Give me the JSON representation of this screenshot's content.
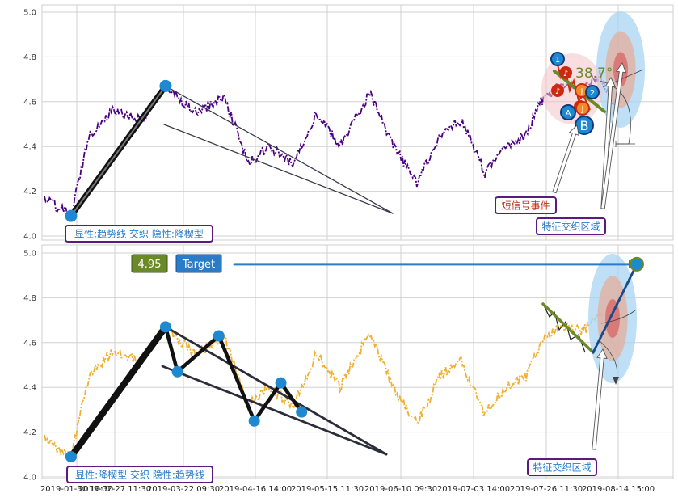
{
  "colors": {
    "top_series": "#4b0082",
    "bottom_series": "#f0b030",
    "trend_thick": "#111111",
    "trend_line": "#3a3a4a",
    "marker_blue": "#1e88d0",
    "marker_red": "#cc2a10",
    "marker_orange": "#f08a28",
    "angle_green": "#6a8a28",
    "target_blue": "#2a7bc8",
    "label_box_border": "#5a1a80",
    "label_text_blue": "#2a7bc8",
    "label_text_red": "#c03020",
    "badge_green": "#6a8a28",
    "badge_blue": "#2a7bc8",
    "halo_outer": "#a8d4f2",
    "halo_mid": "#e2b0a0",
    "halo_inner": "#d86a6a",
    "grid": "#d0d0d0",
    "frame": "#cfcfcf"
  },
  "chart_data": [
    {
      "type": "line",
      "panel": "top",
      "ylim": [
        4.0,
        5.0
      ],
      "y_ticks": [
        "4.0",
        "4.2",
        "4.4",
        "4.6",
        "4.8",
        "5.0"
      ],
      "key_points": [
        {
          "date": "2019-01-30",
          "value": 4.17
        },
        {
          "date": "2019-02-08",
          "value": 4.09
        },
        {
          "date": "2019-02-14",
          "value": 4.45
        },
        {
          "date": "2019-02-22",
          "value": 4.56
        },
        {
          "date": "2019-03-04",
          "value": 4.52
        },
        {
          "date": "2019-03-12",
          "value": 4.67
        },
        {
          "date": "2019-03-22",
          "value": 4.55
        },
        {
          "date": "2019-04-01",
          "value": 4.62
        },
        {
          "date": "2019-04-09",
          "value": 4.32
        },
        {
          "date": "2019-04-16",
          "value": 4.4
        },
        {
          "date": "2019-04-24",
          "value": 4.32
        },
        {
          "date": "2019-05-02",
          "value": 4.55
        },
        {
          "date": "2019-05-10",
          "value": 4.4
        },
        {
          "date": "2019-05-20",
          "value": 4.64
        },
        {
          "date": "2019-05-28",
          "value": 4.4
        },
        {
          "date": "2019-06-05",
          "value": 4.24
        },
        {
          "date": "2019-06-13",
          "value": 4.45
        },
        {
          "date": "2019-06-20",
          "value": 4.52
        },
        {
          "date": "2019-06-28",
          "value": 4.28
        },
        {
          "date": "2019-07-05",
          "value": 4.4
        },
        {
          "date": "2019-07-12",
          "value": 4.45
        },
        {
          "date": "2019-07-17",
          "value": 4.6
        },
        {
          "date": "2019-07-24",
          "value": 4.68
        },
        {
          "date": "2019-07-31",
          "value": 4.65
        },
        {
          "date": "2019-08-06",
          "value": 4.72
        },
        {
          "date": "2019-08-12",
          "value": 4.55
        }
      ],
      "annotations": {
        "angle_label": "38.7°",
        "event_markers": [
          "1",
          "2",
          "A",
          "B"
        ],
        "red_markers": [
          "♪",
          "♪",
          "♪"
        ],
        "orange_markers": [
          "J",
          "J"
        ],
        "label_bottom_left": "显性:趋势线 交织 隐性:降楔型",
        "label_short_signal": "短信号事件",
        "label_feature_zone": "特征交织区域"
      }
    },
    {
      "type": "line",
      "panel": "bottom",
      "ylim": [
        4.0,
        5.0
      ],
      "y_ticks": [
        "4.0",
        "4.2",
        "4.4",
        "4.6",
        "4.8",
        "5.0"
      ],
      "x_ticks": [
        "2019-01-30 10:30",
        "2019-02-27 11:30",
        "2019-03-22 09:30",
        "2019-04-16 14:00",
        "2019-05-15 11:30",
        "2019-06-10 09:30",
        "2019-07-03 14:00",
        "2019-07-26 11:30",
        "2019-08-14 15:00"
      ],
      "key_points": [
        {
          "date": "2019-01-30",
          "value": 4.17
        },
        {
          "date": "2019-02-08",
          "value": 4.09
        },
        {
          "date": "2019-02-14",
          "value": 4.45
        },
        {
          "date": "2019-02-22",
          "value": 4.56
        },
        {
          "date": "2019-03-04",
          "value": 4.52
        },
        {
          "date": "2019-03-12",
          "value": 4.67
        },
        {
          "date": "2019-03-22",
          "value": 4.55
        },
        {
          "date": "2019-04-01",
          "value": 4.62
        },
        {
          "date": "2019-04-09",
          "value": 4.32
        },
        {
          "date": "2019-04-16",
          "value": 4.4
        },
        {
          "date": "2019-04-24",
          "value": 4.32
        },
        {
          "date": "2019-05-02",
          "value": 4.55
        },
        {
          "date": "2019-05-10",
          "value": 4.4
        },
        {
          "date": "2019-05-20",
          "value": 4.64
        },
        {
          "date": "2019-05-28",
          "value": 4.4
        },
        {
          "date": "2019-06-05",
          "value": 4.24
        },
        {
          "date": "2019-06-13",
          "value": 4.45
        },
        {
          "date": "2019-06-20",
          "value": 4.52
        },
        {
          "date": "2019-06-28",
          "value": 4.28
        },
        {
          "date": "2019-07-05",
          "value": 4.4
        },
        {
          "date": "2019-07-12",
          "value": 4.45
        },
        {
          "date": "2019-07-17",
          "value": 4.6
        },
        {
          "date": "2019-07-24",
          "value": 4.68
        },
        {
          "date": "2019-07-31",
          "value": 4.65
        },
        {
          "date": "2019-08-06",
          "value": 4.72
        },
        {
          "date": "2019-08-12",
          "value": 4.55
        }
      ],
      "zigzag_points": [
        {
          "date": "2019-02-08",
          "value": 4.09
        },
        {
          "date": "2019-03-12",
          "value": 4.67
        },
        {
          "date": "2019-03-16",
          "value": 4.47
        },
        {
          "date": "2019-03-30",
          "value": 4.63
        },
        {
          "date": "2019-04-11",
          "value": 4.25
        },
        {
          "date": "2019-04-20",
          "value": 4.42
        },
        {
          "date": "2019-04-27",
          "value": 4.29
        }
      ],
      "target_value": 4.95,
      "annotations": {
        "target_value_label": "4.95",
        "target_label": "Target",
        "label_bottom_left": "显性:降楔型 交织 隐性:趋势线",
        "label_feature_zone": "特征交织区域"
      }
    }
  ]
}
